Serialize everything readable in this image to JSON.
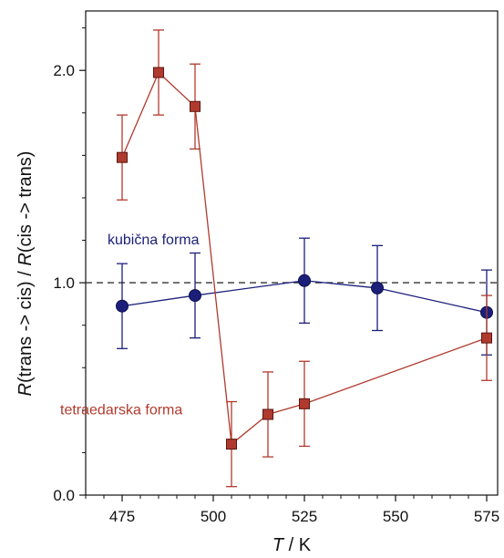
{
  "chart_data": {
    "type": "scatter",
    "title": "",
    "xlabel": {
      "var": "T",
      "rest": " / K"
    },
    "ylabel": {
      "var1": "R",
      "part1": "(trans -> cis) / ",
      "var2": "R",
      "part2": "(cis -> trans)"
    },
    "xlim": [
      465,
      578
    ],
    "ylim": [
      0,
      2.28
    ],
    "xticks": [
      475,
      500,
      525,
      550,
      575
    ],
    "xtick_labels": [
      "475",
      "500",
      "525",
      "550",
      "575"
    ],
    "yticks": [
      0,
      1.0,
      2.0
    ],
    "ytick_labels": [
      "0.0",
      "1.0",
      "2.0"
    ],
    "reference_line": {
      "y": 1.0,
      "style": "dashed",
      "color": "#333333"
    },
    "grid": false,
    "series": [
      {
        "name": "kubična forma",
        "color": "#1b1f7a",
        "marker": "circle",
        "x": [
          475,
          495,
          525,
          545,
          575
        ],
        "y": [
          0.89,
          0.94,
          1.01,
          0.975,
          0.86
        ],
        "err": [
          0.2,
          0.2,
          0.2,
          0.2,
          0.2
        ]
      },
      {
        "name": "tetraedarska forma",
        "color": "#b03a2e",
        "marker": "square",
        "x": [
          475,
          485,
          495,
          505,
          515,
          525,
          575
        ],
        "y": [
          1.59,
          1.99,
          1.83,
          0.24,
          0.38,
          0.43,
          0.74
        ],
        "err": [
          0.2,
          0.2,
          0.2,
          0.2,
          0.2,
          0.2,
          0.2
        ]
      }
    ],
    "annotations": [
      {
        "text": "kubična forma",
        "series": 0,
        "x": 471,
        "y": 1.18
      },
      {
        "text": "tetraedarska forma",
        "series": 1,
        "x": 458,
        "y": 0.38
      }
    ]
  }
}
